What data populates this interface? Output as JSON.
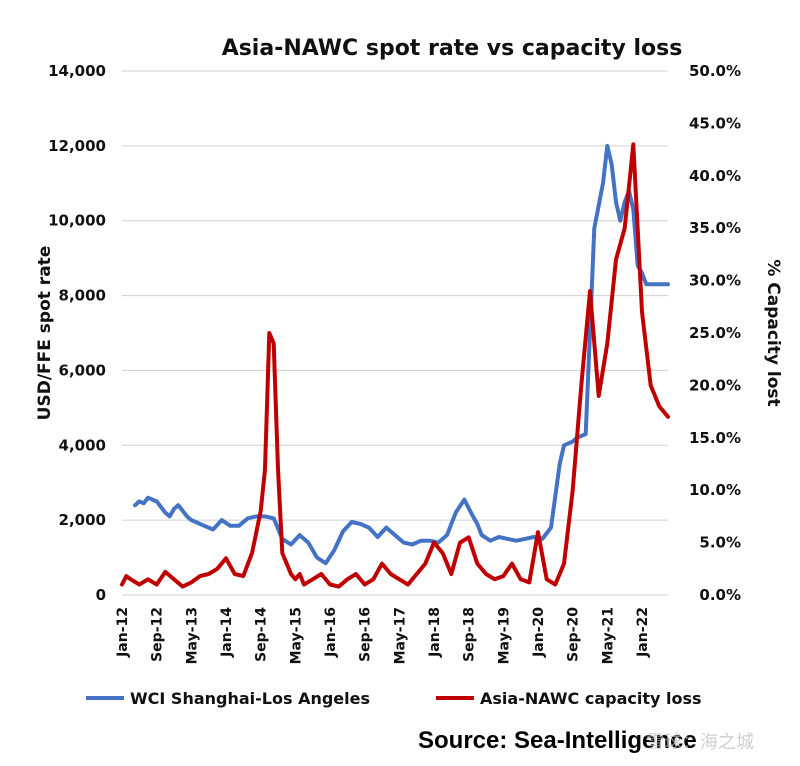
{
  "chart_data": {
    "type": "line",
    "title": "Asia-NAWC spot rate vs capacity loss",
    "ylabel": "USD/FFE spot rate",
    "y2label": "% Capacity lost",
    "ylim": [
      0,
      14000
    ],
    "y2lim": [
      0,
      50
    ],
    "yticks": [
      "0",
      "2,000",
      "4,000",
      "6,000",
      "8,000",
      "10,000",
      "12,000",
      "14,000"
    ],
    "y2ticks": [
      "0.0%",
      "5.0%",
      "10.0%",
      "15.0%",
      "20.0%",
      "25.0%",
      "30.0%",
      "35.0%",
      "40.0%",
      "45.0%",
      "50.0%"
    ],
    "xticks": [
      "Jan-12",
      "Sep-12",
      "May-13",
      "Jan-14",
      "Sep-14",
      "May-15",
      "Jan-16",
      "Sep-16",
      "May-17",
      "Jan-18",
      "Sep-18",
      "May-19",
      "Jan-20",
      "Sep-20",
      "May-21",
      "Jan-22"
    ],
    "grid": true,
    "legend_position": "bottom",
    "series": [
      {
        "name": "WCI Shanghai-Los Angeles",
        "axis": "left",
        "color": "#4472c4",
        "x": [
          "2012-04",
          "2012-05",
          "2012-06",
          "2012-07",
          "2012-08",
          "2012-09",
          "2012-10",
          "2012-11",
          "2012-12",
          "2013-01",
          "2013-02",
          "2013-03",
          "2013-04",
          "2013-05",
          "2013-06",
          "2013-08",
          "2013-10",
          "2013-12",
          "2014-02",
          "2014-04",
          "2014-06",
          "2014-08",
          "2014-10",
          "2014-12",
          "2015-02",
          "2015-04",
          "2015-06",
          "2015-08",
          "2015-10",
          "2015-12",
          "2016-02",
          "2016-04",
          "2016-06",
          "2016-08",
          "2016-10",
          "2016-12",
          "2017-02",
          "2017-04",
          "2017-06",
          "2017-08",
          "2017-10",
          "2017-12",
          "2018-02",
          "2018-04",
          "2018-06",
          "2018-08",
          "2018-10",
          "2018-11",
          "2018-12",
          "2019-02",
          "2019-04",
          "2019-06",
          "2019-08",
          "2019-10",
          "2019-12",
          "2020-02",
          "2020-04",
          "2020-06",
          "2020-07",
          "2020-08",
          "2020-09",
          "2020-10",
          "2020-11",
          "2020-12",
          "2021-02",
          "2021-04",
          "2021-05",
          "2021-06",
          "2021-07",
          "2021-08",
          "2021-09",
          "2021-10",
          "2021-11",
          "2021-12",
          "2022-01",
          "2022-02",
          "2022-03",
          "2022-04",
          "2022-05",
          "2022-06",
          "2022-07"
        ],
        "y": [
          2400,
          2500,
          2450,
          2600,
          2550,
          2500,
          2350,
          2200,
          2100,
          2300,
          2400,
          2250,
          2100,
          2000,
          1950,
          1850,
          1750,
          2000,
          1850,
          1850,
          2050,
          2100,
          2100,
          2050,
          1500,
          1350,
          1600,
          1400,
          1000,
          850,
          1200,
          1700,
          1950,
          1900,
          1800,
          1550,
          1800,
          1600,
          1400,
          1350,
          1450,
          1450,
          1400,
          1600,
          2200,
          2550,
          2100,
          1900,
          1600,
          1450,
          1550,
          1500,
          1450,
          1500,
          1550,
          1500,
          1800,
          3500,
          4000,
          4050,
          4100,
          4200,
          4250,
          4300,
          9800,
          11000,
          12000,
          11500,
          10500,
          10000,
          10500,
          10800,
          10300,
          8800,
          8600,
          8300,
          8300,
          8300,
          8300,
          8300,
          8300
        ]
      },
      {
        "name": "Asia-NAWC capacity loss",
        "axis": "right",
        "color": "#c00000",
        "x": [
          "2012-01",
          "2012-02",
          "2012-03",
          "2012-05",
          "2012-07",
          "2012-09",
          "2012-11",
          "2013-01",
          "2013-03",
          "2013-05",
          "2013-07",
          "2013-09",
          "2013-11",
          "2014-01",
          "2014-03",
          "2014-05",
          "2014-07",
          "2014-09",
          "2014-10",
          "2014-11",
          "2014-12",
          "2015-01",
          "2015-02",
          "2015-03",
          "2015-04",
          "2015-05",
          "2015-06",
          "2015-07",
          "2015-09",
          "2015-11",
          "2016-01",
          "2016-03",
          "2016-05",
          "2016-07",
          "2016-09",
          "2016-11",
          "2017-01",
          "2017-03",
          "2017-05",
          "2017-07",
          "2017-09",
          "2017-11",
          "2018-01",
          "2018-03",
          "2018-05",
          "2018-07",
          "2018-09",
          "2018-11",
          "2019-01",
          "2019-03",
          "2019-05",
          "2019-07",
          "2019-09",
          "2019-11",
          "2020-01",
          "2020-03",
          "2020-05",
          "2020-07",
          "2020-09",
          "2020-11",
          "2021-01",
          "2021-03",
          "2021-05",
          "2021-07",
          "2021-09",
          "2021-11",
          "2022-01",
          "2022-03",
          "2022-05",
          "2022-07"
        ],
        "y": [
          1.0,
          1.8,
          1.5,
          1.0,
          1.5,
          1.0,
          2.2,
          1.5,
          0.8,
          1.2,
          1.8,
          2.0,
          2.5,
          3.5,
          2.0,
          1.8,
          4.0,
          8.0,
          12.0,
          25.0,
          24.0,
          12.0,
          4.0,
          3.0,
          2.0,
          1.5,
          2.0,
          1.0,
          1.5,
          2.0,
          1.0,
          0.8,
          1.5,
          2.0,
          1.0,
          1.5,
          3.0,
          2.0,
          1.5,
          1.0,
          2.0,
          3.0,
          5.0,
          4.0,
          2.0,
          5.0,
          5.5,
          3.0,
          2.0,
          1.5,
          1.8,
          3.0,
          1.5,
          1.2,
          6.0,
          1.5,
          1.0,
          3.0,
          10.0,
          20.0,
          29.0,
          19.0,
          24.0,
          32.0,
          35.0,
          43.0,
          27.0,
          20.0,
          18.0,
          17.0
        ]
      }
    ]
  },
  "source": "Source: Sea-Intelligence",
  "watermark": "雪球：海之城"
}
